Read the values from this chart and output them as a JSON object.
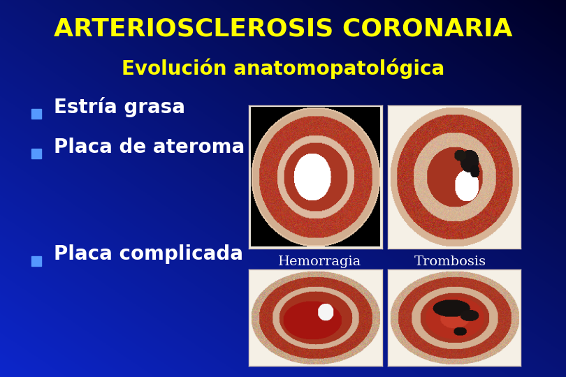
{
  "title": "ARTERIOSCLEROSIS CORONARIA",
  "subtitle": "Evolución anatomopatológica",
  "title_color": "#FFFF00",
  "subtitle_color": "#FFFF00",
  "bg_top_color": "#000033",
  "bg_bottom_left_color": "#1155CC",
  "bullet_color": "#5599FF",
  "text_color": "#FFFFFF",
  "bullets": [
    "Estría grasa",
    "Placa de ateroma"
  ],
  "bullet3": "Placa complicada",
  "label1": "Hemorragia",
  "label2": "Trombosis",
  "title_fontsize": 26,
  "subtitle_fontsize": 20,
  "bullet_fontsize": 20,
  "label_fontsize": 14,
  "img_bg": "#f5e8d8",
  "img_border": "#ccbbaa"
}
